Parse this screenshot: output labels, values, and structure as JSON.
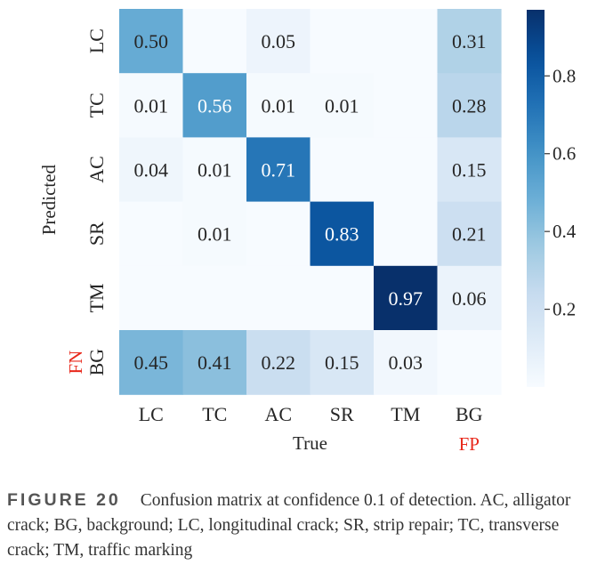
{
  "chart_data": {
    "type": "heatmap",
    "rows": [
      "LC",
      "TC",
      "AC",
      "SR",
      "TM",
      "BG"
    ],
    "columns": [
      "LC",
      "TC",
      "AC",
      "SR",
      "TM",
      "BG"
    ],
    "values": [
      [
        0.5,
        null,
        0.05,
        null,
        null,
        0.31
      ],
      [
        0.01,
        0.56,
        0.01,
        0.01,
        null,
        0.28
      ],
      [
        0.04,
        0.01,
        0.71,
        null,
        null,
        0.15
      ],
      [
        null,
        0.01,
        null,
        0.83,
        null,
        0.21
      ],
      [
        null,
        null,
        null,
        null,
        0.97,
        0.06
      ],
      [
        0.45,
        0.41,
        0.22,
        0.15,
        0.03,
        null
      ]
    ],
    "labels": [
      [
        "0.50",
        "",
        "0.05",
        "",
        "",
        "0.31"
      ],
      [
        "0.01",
        "0.56",
        "0.01",
        "0.01",
        "",
        "0.28"
      ],
      [
        "0.04",
        "0.01",
        "0.71",
        "",
        "",
        "0.15"
      ],
      [
        "",
        "0.01",
        "",
        "0.83",
        "",
        "0.21"
      ],
      [
        "",
        "",
        "",
        "",
        "0.97",
        "0.06"
      ],
      [
        "0.45",
        "0.41",
        "0.22",
        "0.15",
        "0.03",
        ""
      ]
    ],
    "xlabel": "True",
    "ylabel": "Predicted",
    "extra_x_label": "FP",
    "extra_y_label": "FN",
    "extra_label_color": "#e8291c",
    "colorbar": {
      "min": 0.0,
      "max": 0.97,
      "ticks": [
        0.2,
        0.4,
        0.6,
        0.8
      ],
      "tick_labels": [
        "0.2",
        "0.4",
        "0.6",
        "0.8"
      ],
      "colormap": "Blues"
    }
  },
  "caption": {
    "label": "FIGURE 20",
    "text": "Confusion matrix at confidence 0.1 of detection. AC, alligator crack; BG, background; LC, longitudinal crack; SR, strip repair; TC, transverse crack; TM, traffic marking"
  }
}
